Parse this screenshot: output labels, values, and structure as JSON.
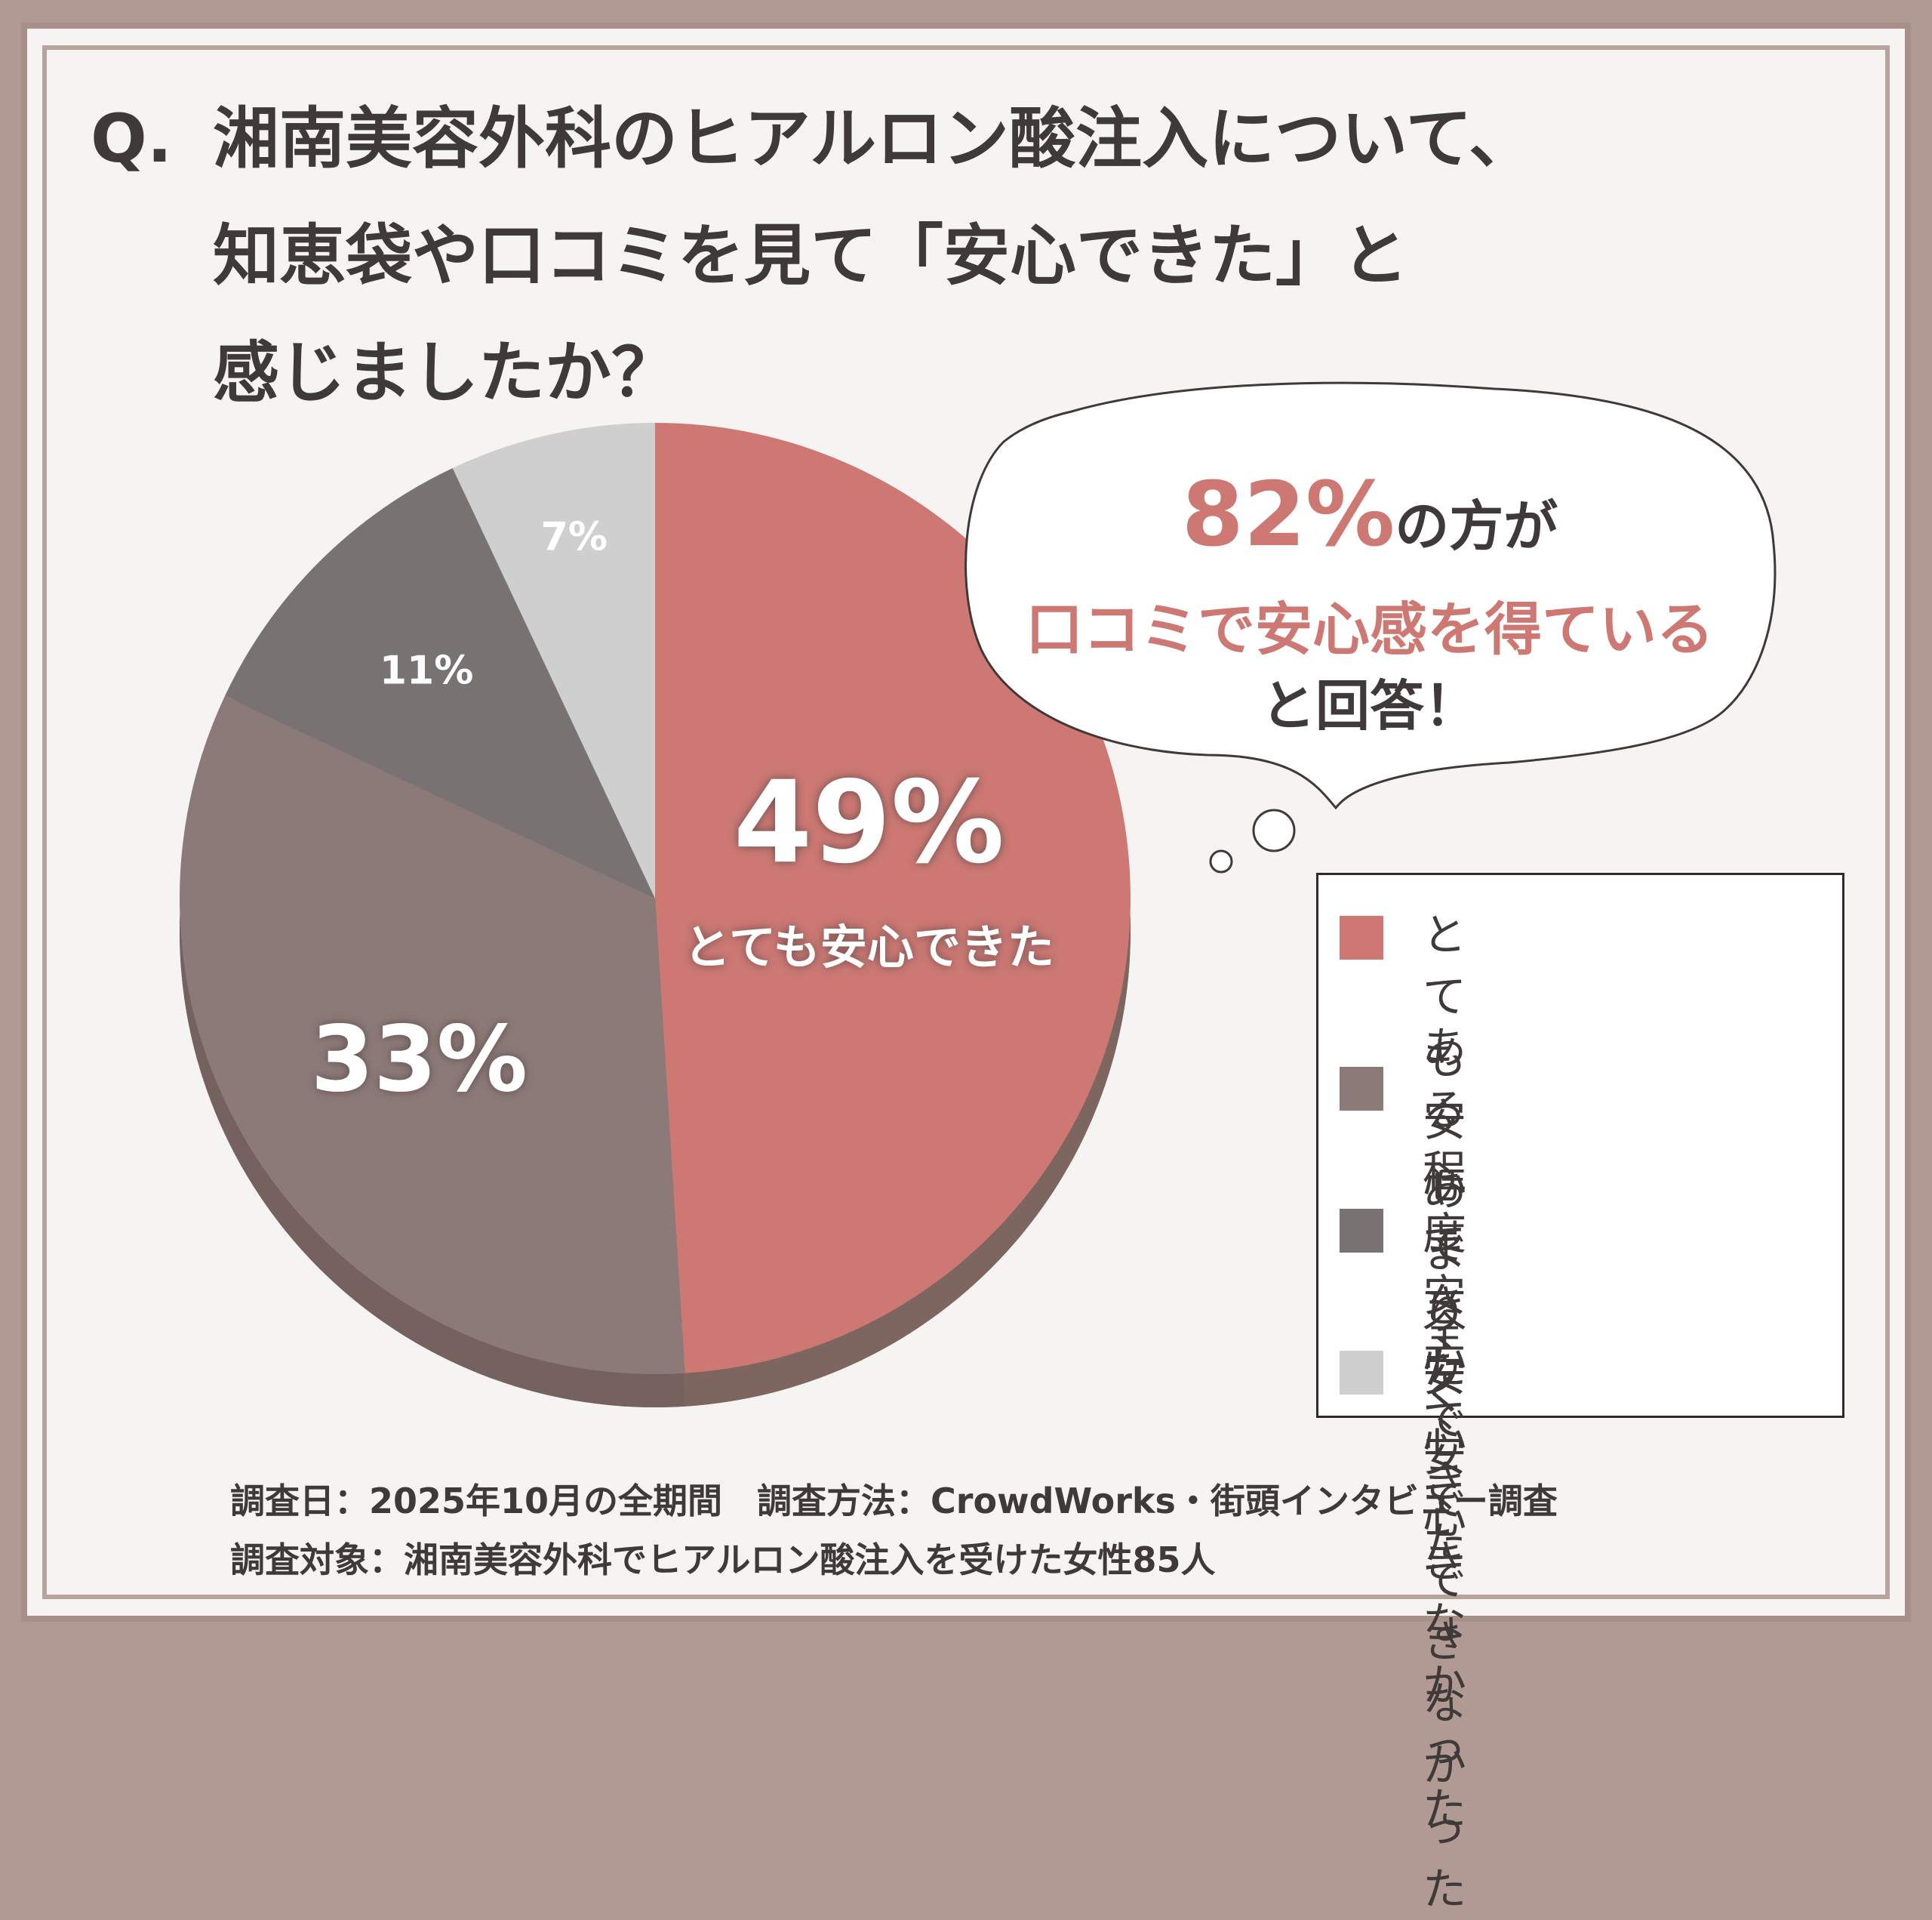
{
  "title": {
    "prefix": "Q.",
    "line1": "湘南美容外科のヒアルロン酸注入について、",
    "line2": "知恵袋や口コミを見て「安心できた」と",
    "line3": "感じましたか？"
  },
  "bubble": {
    "percent": "82%",
    "suffix": "の方が",
    "line2": "口コミで安心感を得ている",
    "line3": "と回答！"
  },
  "highlight_label": "とても安心できた",
  "footer": {
    "line1": "調査日：2025年10月の全期間　調査方法：CrowdWorks・街頭インタビュー調査",
    "line2": "調査対象：湘南美容外科でヒアルロン酸注入を受けた女性85人"
  },
  "colors": {
    "very": "#cd7873",
    "somewhat": "#8c7a78",
    "not_really": "#797272",
    "not_at_all": "#cfcfcf",
    "accent": "#cd7873",
    "text": "#3f3a39"
  },
  "legend": [
    {
      "label": "とても安心できた"
    },
    {
      "label": "ある程度\n安心できた"
    },
    {
      "label": "あまり安心\nできなかった"
    },
    {
      "label": "全く安心\nできなかった"
    }
  ],
  "chart_data": {
    "type": "pie",
    "categories": [
      "とても安心できた",
      "ある程度安心できた",
      "あまり安心できなかった",
      "全く安心できなかった"
    ],
    "values": [
      49,
      33,
      11,
      7
    ],
    "labels": [
      "49%",
      "33%",
      "11%",
      "7%"
    ],
    "legend_position": "right"
  }
}
